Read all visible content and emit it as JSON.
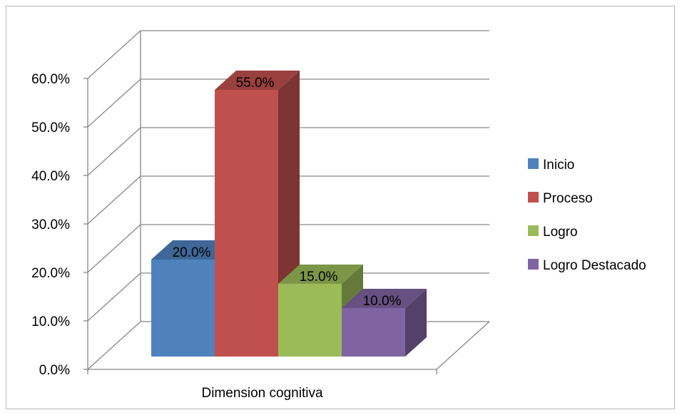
{
  "chart_data": {
    "type": "bar",
    "style": "3d-clustered-column",
    "categories": [
      "Dimension cognitiva"
    ],
    "series": [
      {
        "name": "Inicio",
        "values": [
          20.0
        ],
        "color": "#4f81bd",
        "label": "20.0%"
      },
      {
        "name": "Proceso",
        "values": [
          55.0
        ],
        "color": "#c0504d",
        "label": "55.0%"
      },
      {
        "name": "Logro",
        "values": [
          15.0
        ],
        "color": "#9bbb59",
        "label": "15.0%"
      },
      {
        "name": "Logro Destacado",
        "values": [
          10.0
        ],
        "color": "#8064a2",
        "label": "10.0%"
      }
    ],
    "ylim": [
      0,
      60
    ],
    "yticks": [
      "0.0%",
      "10.0%",
      "20.0%",
      "30.0%",
      "40.0%",
      "50.0%",
      "60.0%"
    ],
    "grid": true,
    "legend": "right"
  }
}
